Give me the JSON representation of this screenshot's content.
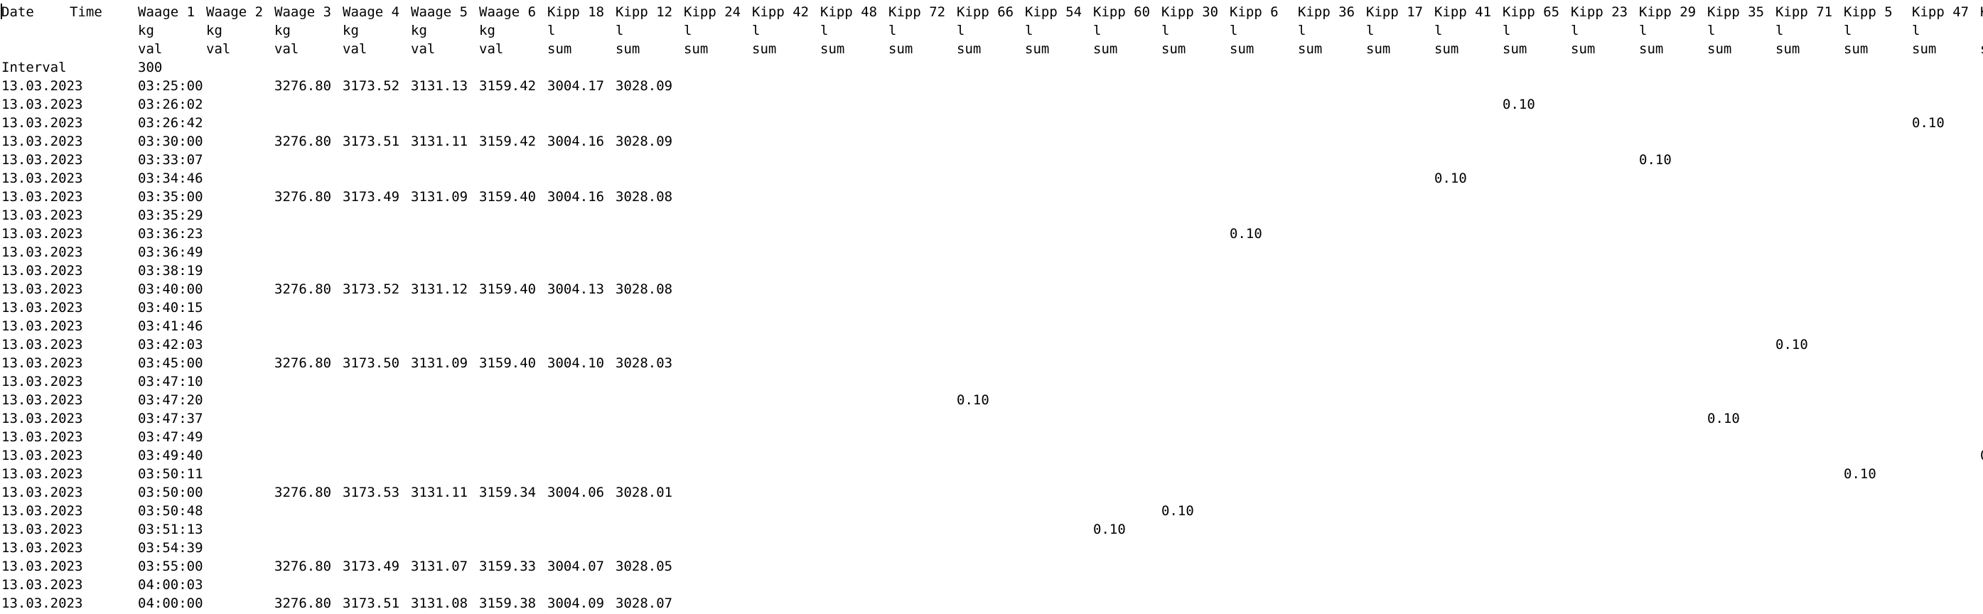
{
  "header_row_1": [
    "Date",
    "Time",
    "Waage 1",
    "Waage 2",
    "Waage 3",
    "Waage 4",
    "Waage 5",
    "Waage 6",
    "Kipp 18",
    "Kipp 12",
    "Kipp 24",
    "Kipp 42",
    "Kipp 48",
    "Kipp 72",
    "Kipp 66",
    "Kipp 54",
    "Kipp 60",
    "Kipp 30",
    "Kipp 6",
    "Kipp 36",
    "Kipp 17",
    "Kipp 41",
    "Kipp 65",
    "Kipp 23",
    "Kipp 29",
    "Kipp 35",
    "Kipp 71",
    "Kipp 5",
    "Kipp 47",
    "K"
  ],
  "header_row_2": [
    "",
    "",
    "kg",
    "kg",
    "kg",
    "kg",
    "kg",
    "kg",
    "l",
    "l",
    "l",
    "l",
    "l",
    "l",
    "l",
    "l",
    "l",
    "l",
    "l",
    "l",
    "l",
    "l",
    "l",
    "l",
    "l",
    "l",
    "l",
    "l",
    "l",
    ""
  ],
  "header_row_3": [
    "",
    "",
    "val",
    "val",
    "val",
    "val",
    "val",
    "val",
    "sum",
    "sum",
    "sum",
    "sum",
    "sum",
    "sum",
    "sum",
    "sum",
    "sum",
    "sum",
    "sum",
    "sum",
    "sum",
    "sum",
    "sum",
    "sum",
    "sum",
    "sum",
    "sum",
    "sum",
    "sum",
    "s"
  ],
  "interval": {
    "label": "Interval",
    "value": "300"
  },
  "rows": [
    {
      "date": "13.03.2023",
      "time": "03:25:00",
      "vals": [
        "3276.80",
        "3173.52",
        "3131.13",
        "3159.42",
        "3004.17",
        "3028.09"
      ]
    },
    {
      "date": "13.03.2023",
      "time": "03:26:02",
      "kipp": {
        "col": 22,
        "value": "0.10"
      }
    },
    {
      "date": "13.03.2023",
      "time": "03:26:42",
      "kipp": {
        "col": 28,
        "value": "0.10"
      }
    },
    {
      "date": "13.03.2023",
      "time": "03:30:00",
      "vals": [
        "3276.80",
        "3173.51",
        "3131.11",
        "3159.42",
        "3004.16",
        "3028.09"
      ]
    },
    {
      "date": "13.03.2023",
      "time": "03:33:07",
      "kipp": {
        "col": 24,
        "value": "0.10"
      }
    },
    {
      "date": "13.03.2023",
      "time": "03:34:46",
      "kipp": {
        "col": 21,
        "value": "0.10"
      }
    },
    {
      "date": "13.03.2023",
      "time": "03:35:00",
      "vals": [
        "3276.80",
        "3173.49",
        "3131.09",
        "3159.40",
        "3004.16",
        "3028.08"
      ]
    },
    {
      "date": "13.03.2023",
      "time": "03:35:29"
    },
    {
      "date": "13.03.2023",
      "time": "03:36:23",
      "kipp": {
        "col": 18,
        "value": "0.10"
      }
    },
    {
      "date": "13.03.2023",
      "time": "03:36:49"
    },
    {
      "date": "13.03.2023",
      "time": "03:38:19"
    },
    {
      "date": "13.03.2023",
      "time": "03:40:00",
      "vals": [
        "3276.80",
        "3173.52",
        "3131.12",
        "3159.40",
        "3004.13",
        "3028.08"
      ]
    },
    {
      "date": "13.03.2023",
      "time": "03:40:15"
    },
    {
      "date": "13.03.2023",
      "time": "03:41:46"
    },
    {
      "date": "13.03.2023",
      "time": "03:42:03",
      "kipp": {
        "col": 26,
        "value": "0.10"
      }
    },
    {
      "date": "13.03.2023",
      "time": "03:45:00",
      "vals": [
        "3276.80",
        "3173.50",
        "3131.09",
        "3159.40",
        "3004.10",
        "3028.03"
      ]
    },
    {
      "date": "13.03.2023",
      "time": "03:47:10"
    },
    {
      "date": "13.03.2023",
      "time": "03:47:20",
      "kipp": {
        "col": 14,
        "value": "0.10"
      }
    },
    {
      "date": "13.03.2023",
      "time": "03:47:37",
      "kipp": {
        "col": 25,
        "value": "0.10"
      }
    },
    {
      "date": "13.03.2023",
      "time": "03:47:49"
    },
    {
      "date": "13.03.2023",
      "time": "03:49:40",
      "kipp": {
        "col": 29,
        "value": "0"
      }
    },
    {
      "date": "13.03.2023",
      "time": "03:50:11",
      "kipp": {
        "col": 27,
        "value": "0.10"
      }
    },
    {
      "date": "13.03.2023",
      "time": "03:50:00",
      "vals": [
        "3276.80",
        "3173.53",
        "3131.11",
        "3159.34",
        "3004.06",
        "3028.01"
      ]
    },
    {
      "date": "13.03.2023",
      "time": "03:50:48",
      "kipp": {
        "col": 17,
        "value": "0.10"
      }
    },
    {
      "date": "13.03.2023",
      "time": "03:51:13",
      "kipp": {
        "col": 16,
        "value": "0.10"
      }
    },
    {
      "date": "13.03.2023",
      "time": "03:54:39"
    },
    {
      "date": "13.03.2023",
      "time": "03:55:00",
      "vals": [
        "3276.80",
        "3173.49",
        "3131.07",
        "3159.33",
        "3004.07",
        "3028.05"
      ]
    },
    {
      "date": "13.03.2023",
      "time": "04:00:03"
    },
    {
      "date": "13.03.2023",
      "time": "04:00:00",
      "vals": [
        "3276.80",
        "3173.51",
        "3131.08",
        "3159.38",
        "3004.09",
        "3028.07"
      ]
    }
  ]
}
